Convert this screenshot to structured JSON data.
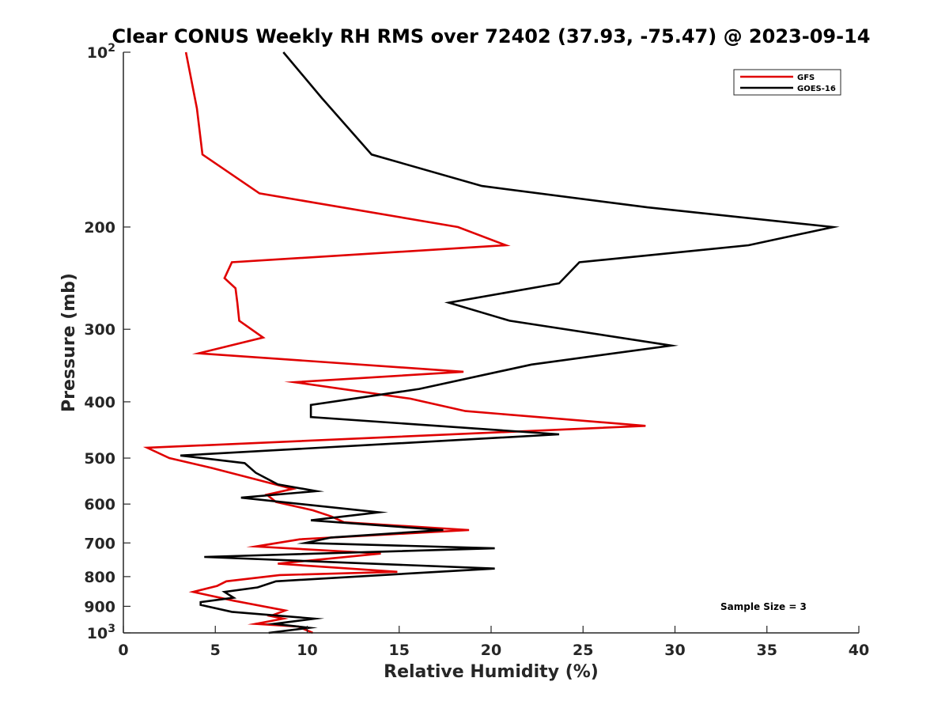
{
  "chart_data": {
    "type": "line",
    "title": "Clear CONUS Weekly RH RMS over 72402 (37.93, -75.47) @ 2023-09-14",
    "xlabel": "Relative Humidity (%)",
    "ylabel": "Pressure (mb)",
    "xlim": [
      0,
      40
    ],
    "ylim": [
      100,
      1000
    ],
    "yscale": "log",
    "y_reversed": true,
    "xticks": [
      0,
      5,
      10,
      15,
      20,
      25,
      30,
      35,
      40
    ],
    "yticks": [
      {
        "value": 100,
        "base": "10",
        "exp": "2"
      },
      {
        "value": 200,
        "label": "200"
      },
      {
        "value": 300,
        "label": "300"
      },
      {
        "value": 400,
        "label": "400"
      },
      {
        "value": 500,
        "label": "500"
      },
      {
        "value": 600,
        "label": "600"
      },
      {
        "value": 700,
        "label": "700"
      },
      {
        "value": 800,
        "label": "800"
      },
      {
        "value": 900,
        "label": "900"
      },
      {
        "value": 1000,
        "base": "10",
        "exp": "3"
      }
    ],
    "legend_position": "top-right",
    "annotation": "Sample Size = 3",
    "series": [
      {
        "name": "GFS",
        "color": "#e00000",
        "points": [
          [
            3.4,
            100
          ],
          [
            4.0,
            125
          ],
          [
            4.3,
            150
          ],
          [
            7.4,
            175
          ],
          [
            18.2,
            200
          ],
          [
            20.8,
            215
          ],
          [
            5.9,
            230
          ],
          [
            5.5,
            245
          ],
          [
            6.1,
            255
          ],
          [
            6.2,
            270
          ],
          [
            6.3,
            290
          ],
          [
            7.6,
            310
          ],
          [
            4.1,
            330
          ],
          [
            18.5,
            355
          ],
          [
            9.3,
            370
          ],
          [
            15.6,
            395
          ],
          [
            18.6,
            415
          ],
          [
            28.4,
            440
          ],
          [
            1.3,
            480
          ],
          [
            2.5,
            500
          ],
          [
            4.8,
            520
          ],
          [
            7.3,
            545
          ],
          [
            9.2,
            565
          ],
          [
            7.8,
            578
          ],
          [
            8.3,
            595
          ],
          [
            10.3,
            615
          ],
          [
            11.3,
            630
          ],
          [
            12.0,
            645
          ],
          [
            18.8,
            665
          ],
          [
            9.6,
            690
          ],
          [
            7.2,
            710
          ],
          [
            14.0,
            730
          ],
          [
            8.4,
            760
          ],
          [
            14.9,
            785
          ],
          [
            8.5,
            795
          ],
          [
            5.6,
            815
          ],
          [
            5.1,
            830
          ],
          [
            3.8,
            850
          ],
          [
            6.0,
            880
          ],
          [
            8.8,
            915
          ],
          [
            8.0,
            935
          ],
          [
            8.7,
            945
          ],
          [
            7.2,
            965
          ],
          [
            9.5,
            975
          ],
          [
            10.3,
            1000
          ]
        ]
      },
      {
        "name": "GOES-16",
        "color": "#000000",
        "points": [
          [
            8.7,
            100
          ],
          [
            10.8,
            120
          ],
          [
            13.5,
            150
          ],
          [
            19.5,
            170
          ],
          [
            28.5,
            185
          ],
          [
            38.6,
            200
          ],
          [
            34.0,
            215
          ],
          [
            24.8,
            230
          ],
          [
            23.7,
            250
          ],
          [
            17.7,
            270
          ],
          [
            21.0,
            290
          ],
          [
            29.8,
            320
          ],
          [
            22.2,
            345
          ],
          [
            16.1,
            380
          ],
          [
            10.2,
            405
          ],
          [
            10.2,
            425
          ],
          [
            23.7,
            455
          ],
          [
            3.1,
            495
          ],
          [
            6.6,
            510
          ],
          [
            7.2,
            530
          ],
          [
            8.4,
            555
          ],
          [
            10.5,
            570
          ],
          [
            6.4,
            585
          ],
          [
            13.9,
            620
          ],
          [
            10.2,
            640
          ],
          [
            17.4,
            665
          ],
          [
            11.3,
            685
          ],
          [
            9.9,
            700
          ],
          [
            20.2,
            715
          ],
          [
            4.4,
            740
          ],
          [
            20.2,
            775
          ],
          [
            12.6,
            800
          ],
          [
            8.3,
            815
          ],
          [
            7.3,
            835
          ],
          [
            5.5,
            850
          ],
          [
            6.0,
            870
          ],
          [
            4.2,
            885
          ],
          [
            4.2,
            895
          ],
          [
            5.9,
            920
          ],
          [
            10.4,
            945
          ],
          [
            8.2,
            965
          ],
          [
            10.1,
            980
          ],
          [
            7.9,
            1000
          ]
        ]
      }
    ]
  }
}
